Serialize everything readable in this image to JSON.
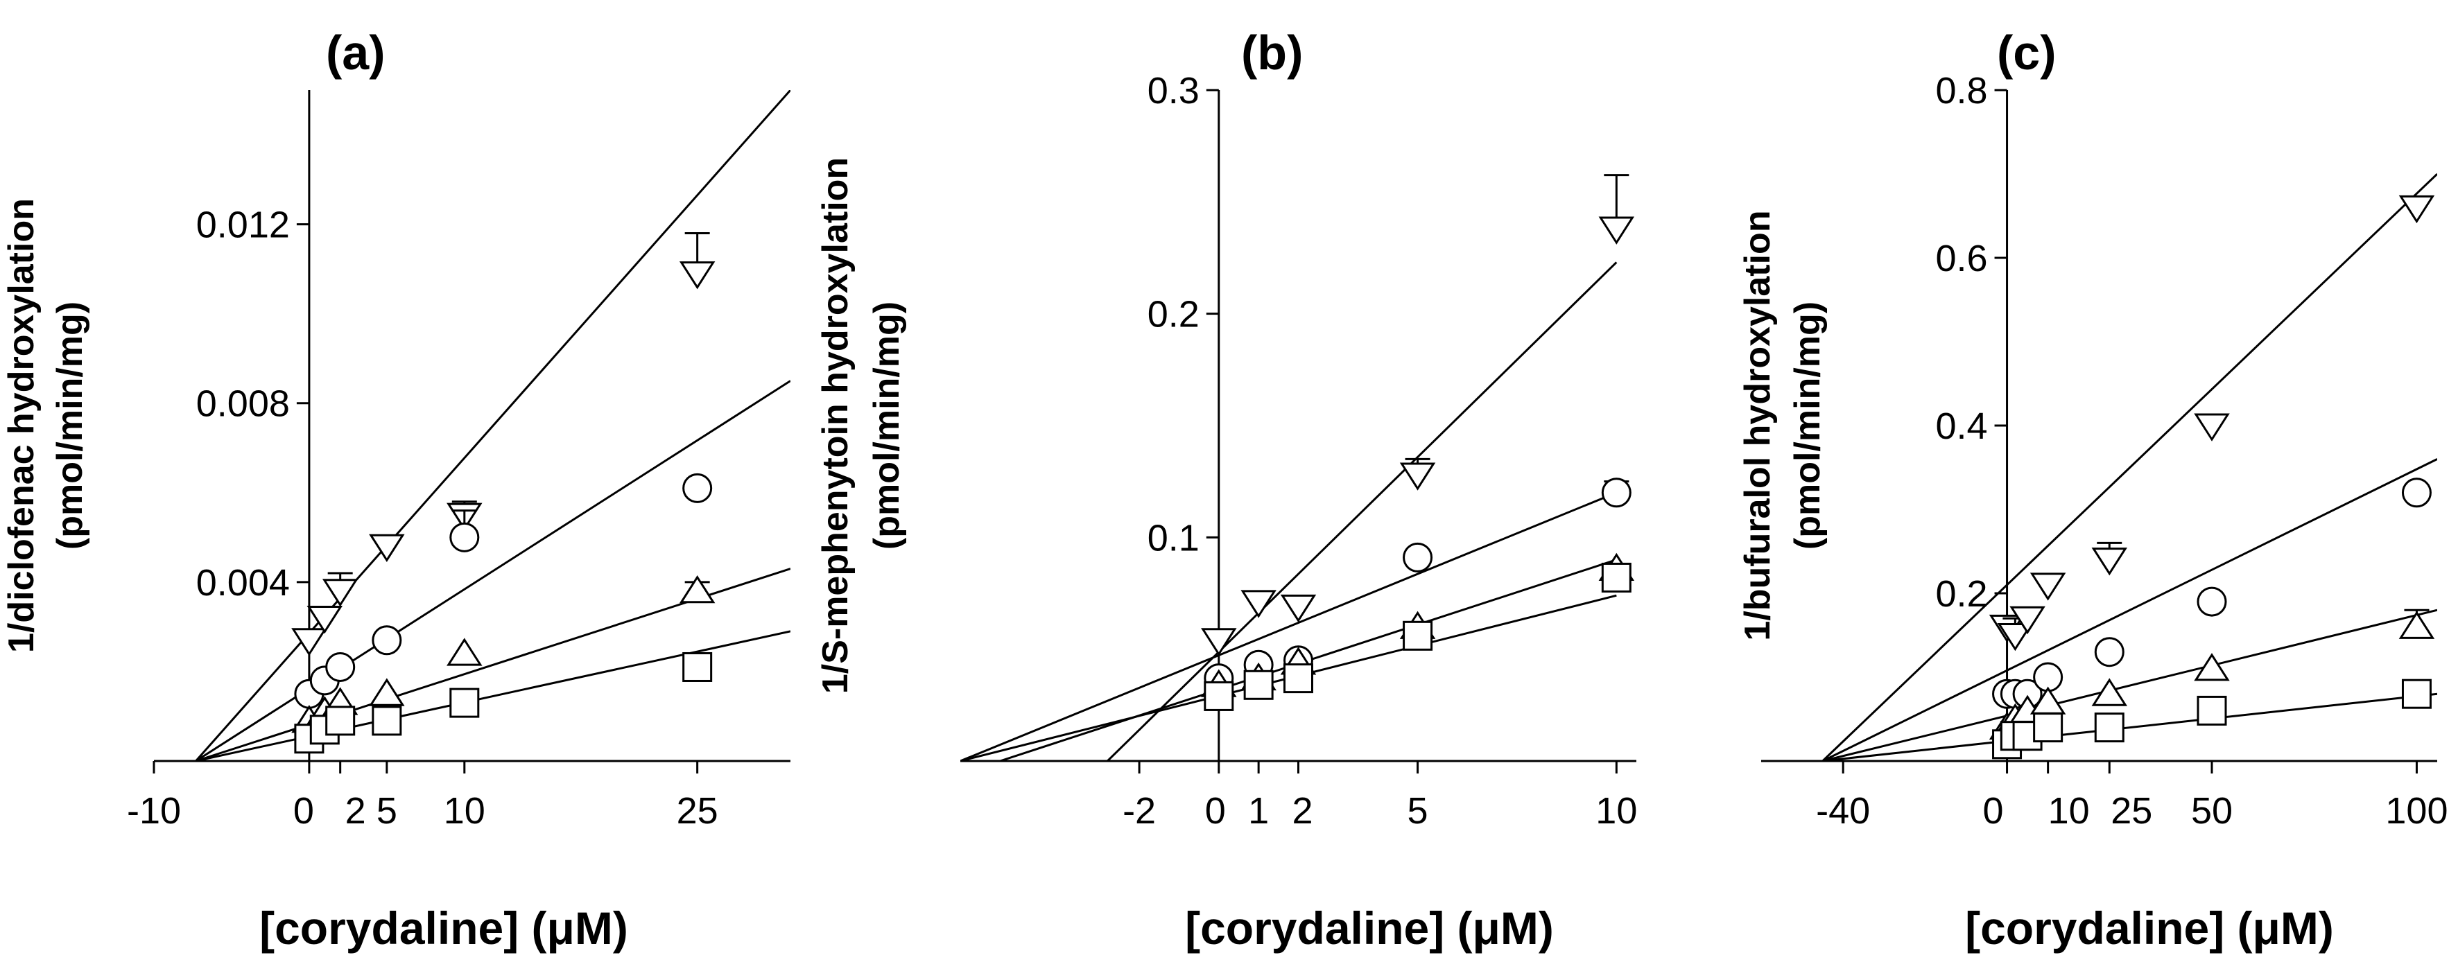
{
  "chart_data": [
    {
      "type": "scatter",
      "panel_label": "(a)",
      "xlabel": "[corydaline] (μM)",
      "ylabel_line1": "1/diclofenac hydroxylation",
      "ylabel_line2": "(pmol/min/mg)",
      "xlim": [
        -10,
        31
      ],
      "ylim": [
        0,
        0.015
      ],
      "xticks": [
        "-10",
        "0",
        "2",
        "5",
        "10",
        "25"
      ],
      "yticks": [
        "0.004",
        "0.008",
        "0.012"
      ],
      "x": [
        0,
        1,
        2,
        5,
        10,
        25
      ],
      "series": [
        {
          "name": "down-triangle",
          "marker": "triangle-down",
          "values": [
            0.0027,
            0.0032,
            0.0038,
            0.0048,
            0.0055,
            0.0109
          ],
          "errors": [
            0.0002,
            0.0002,
            0.0004,
            0.0002,
            0.0003,
            0.0009
          ]
        },
        {
          "name": "circle",
          "marker": "circle",
          "values": [
            0.0015,
            0.0018,
            0.0021,
            0.0027,
            0.005,
            0.0061
          ],
          "errors": [
            0,
            0,
            0,
            0,
            0.0006,
            0
          ]
        },
        {
          "name": "triangle",
          "marker": "triangle-up",
          "values": [
            0.0009,
            0.0011,
            0.0013,
            0.0015,
            0.0024,
            0.0038
          ],
          "errors": [
            0,
            0,
            0,
            0,
            0,
            0.0002
          ]
        },
        {
          "name": "square",
          "marker": "square",
          "values": [
            0.0005,
            0.0007,
            0.0009,
            0.0009,
            0.0013,
            0.0021
          ],
          "errors": [
            0,
            0,
            0,
            0,
            0,
            0
          ]
        }
      ],
      "fit_lines": [
        {
          "x": [
            -7.3,
            31
          ],
          "y": [
            0,
            0.015
          ]
        },
        {
          "x": [
            -7.3,
            31
          ],
          "y": [
            0,
            0.0085
          ]
        },
        {
          "x": [
            -7.3,
            31
          ],
          "y": [
            0,
            0.0043
          ]
        },
        {
          "x": [
            -7.3,
            31
          ],
          "y": [
            0,
            0.0029
          ]
        }
      ]
    },
    {
      "type": "scatter",
      "panel_label": "(b)",
      "xlabel": "[corydaline] (μM)",
      "ylabel_line1": "1/S-mephenytoin hydroxylation",
      "ylabel_line2": "(pmol/min/mg)",
      "xlim": [
        -6.5,
        10.5
      ],
      "ylim": [
        0,
        0.3
      ],
      "xticks": [
        "-2",
        "0",
        "1",
        "2",
        "5",
        "10"
      ],
      "yticks": [
        "0.1",
        "0.2",
        "0.3"
      ],
      "x": [
        0,
        1,
        2,
        5,
        10
      ],
      "series": [
        {
          "name": "down-triangle",
          "marker": "triangle-down",
          "values": [
            0.054,
            0.071,
            0.069,
            0.128,
            0.238
          ],
          "errors": [
            0,
            0,
            0,
            0.007,
            0.024
          ]
        },
        {
          "name": "circle",
          "marker": "circle",
          "values": [
            0.037,
            0.043,
            0.045,
            0.091,
            0.12
          ],
          "errors": [
            0,
            0,
            0,
            0,
            0.005
          ]
        },
        {
          "name": "triangle",
          "marker": "triangle-up",
          "values": [
            0.034,
            0.037,
            0.044,
            0.06,
            0.086
          ],
          "errors": [
            0,
            0,
            0,
            0,
            0
          ]
        },
        {
          "name": "square",
          "marker": "square",
          "values": [
            0.029,
            0.034,
            0.037,
            0.056,
            0.082
          ],
          "errors": [
            0,
            0,
            0,
            0,
            0.004
          ]
        }
      ],
      "fit_lines": [
        {
          "x": [
            -2.8,
            10
          ],
          "y": [
            0,
            0.223
          ]
        },
        {
          "x": [
            -6.5,
            10
          ],
          "y": [
            0,
            0.12
          ]
        },
        {
          "x": [
            -5.5,
            10
          ],
          "y": [
            0,
            0.09
          ]
        },
        {
          "x": [
            -6.5,
            10
          ],
          "y": [
            0,
            0.074
          ]
        }
      ]
    },
    {
      "type": "scatter",
      "panel_label": "(c)",
      "xlabel": "[corydaline] (μM)",
      "ylabel_line1": "1/bufuralol hydroxylation",
      "ylabel_line2": "(pmol/min/mg)",
      "xlim": [
        -60,
        105
      ],
      "ylim": [
        0,
        0.8
      ],
      "xticks": [
        "-40",
        "0",
        "10",
        "25",
        "50",
        "100"
      ],
      "yticks": [
        "0.2",
        "0.4",
        "0.6",
        "0.8"
      ],
      "x": [
        0,
        2,
        5,
        10,
        25,
        50,
        100
      ],
      "series": [
        {
          "name": "down-triangle",
          "marker": "triangle-down",
          "values": [
            0.16,
            0.15,
            0.17,
            0.21,
            0.24,
            0.4,
            0.66
          ],
          "errors": [
            0.01,
            0.02,
            0,
            0,
            0.02,
            0,
            0.01
          ]
        },
        {
          "name": "circle",
          "marker": "circle",
          "values": [
            0.08,
            0.08,
            0.08,
            0.1,
            0.13,
            0.19,
            0.32
          ],
          "errors": [
            0,
            0,
            0,
            0,
            0,
            0,
            0
          ]
        },
        {
          "name": "triangle",
          "marker": "triangle-up",
          "values": [
            0.04,
            0.05,
            0.06,
            0.07,
            0.08,
            0.11,
            0.16
          ],
          "errors": [
            0,
            0,
            0,
            0,
            0,
            0,
            0.02
          ]
        },
        {
          "name": "square",
          "marker": "square",
          "values": [
            0.02,
            0.03,
            0.03,
            0.04,
            0.04,
            0.06,
            0.08
          ],
          "errors": [
            0,
            0,
            0,
            0,
            0,
            0,
            0
          ]
        }
      ],
      "fit_lines": [
        {
          "x": [
            -45,
            105
          ],
          "y": [
            0,
            0.7
          ]
        },
        {
          "x": [
            -45,
            105
          ],
          "y": [
            0,
            0.36
          ]
        },
        {
          "x": [
            -45,
            105
          ],
          "y": [
            0,
            0.18
          ]
        },
        {
          "x": [
            -45,
            105
          ],
          "y": [
            0,
            0.08
          ]
        }
      ]
    }
  ]
}
